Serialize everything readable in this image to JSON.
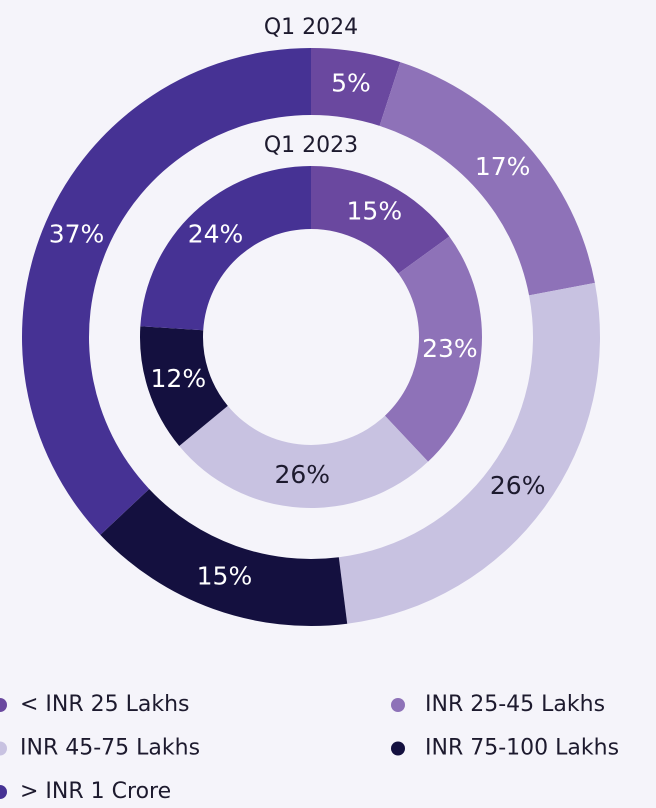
{
  "chart_data": {
    "type": "donut",
    "categories": [
      "< INR 25 Lakhs",
      "INR 25-45 Lakhs",
      "INR 45-75 Lakhs",
      "INR 75-100 Lakhs",
      "> INR 1 Crore"
    ],
    "colors": [
      "#6a489f",
      "#8e72b8",
      "#c8c2e1",
      "#14103f",
      "#463294"
    ],
    "series": [
      {
        "name": "Q1 2024",
        "values": [
          5,
          17,
          26,
          15,
          37
        ],
        "value_labels": [
          "5%",
          "17%",
          "26%",
          "15%",
          "37%"
        ]
      },
      {
        "name": "Q1 2023",
        "values": [
          15,
          23,
          26,
          12,
          24
        ],
        "value_labels": [
          "15%",
          "23%",
          "26%",
          "12%",
          "24%"
        ]
      }
    ],
    "legend": "bottom"
  }
}
